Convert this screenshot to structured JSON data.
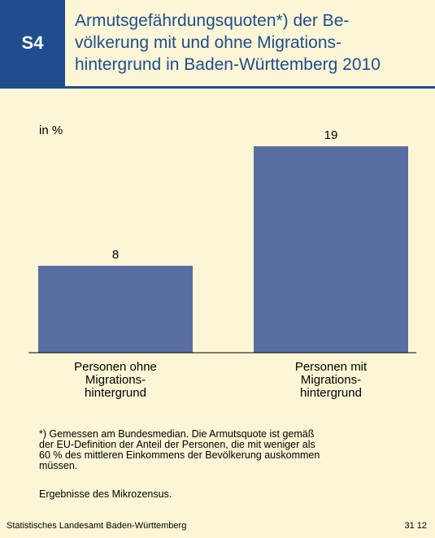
{
  "chart_data": {
    "type": "bar",
    "badge": "S4",
    "title": "Armutsgefährdungsquoten*) der Be-\nvölkerung mit und ohne Migrations-\nhintergrund in Baden-Württemberg 2010",
    "unit_label": "in %",
    "categories": [
      "Personen ohne\nMigrations-\nhintergrund",
      "Personen mit\nMigrations-\nhintergrund"
    ],
    "values": [
      8,
      19
    ],
    "color": "#586ea3",
    "footnote": "*) Gemessen am Bundesmedian. Die Armutsquote ist gemäß\nder EU-Definition der Anteil der Personen, die mit weniger als\n60 % des mittleren Einkommens der Bevölkerung auskommen\nmüssen.",
    "source_note": "Ergebnisse des Mikrozensus.",
    "publisher": "Statistisches Landesamt Baden-Württemberg",
    "code": "31 12"
  }
}
